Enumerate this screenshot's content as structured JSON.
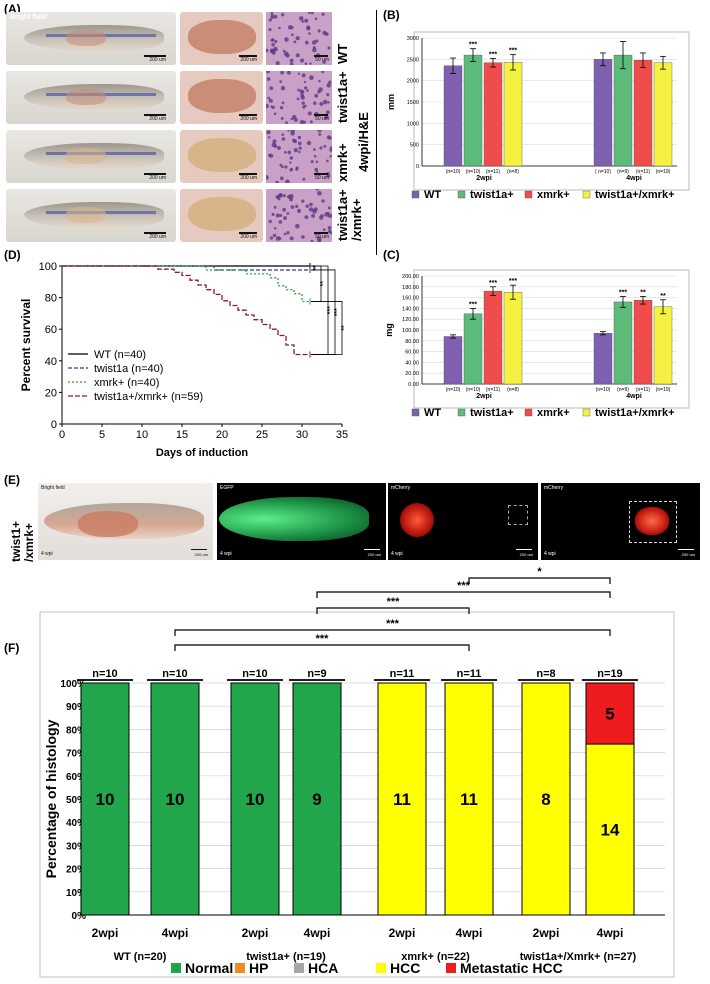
{
  "panel_labels": {
    "a": "(A)",
    "b": "(B)",
    "c": "(C)",
    "d": "(D)",
    "e": "(E)",
    "f": "(F)"
  },
  "panelA": {
    "bright_field_label": "Bright field",
    "row_labels": [
      "WT",
      "twist1a+",
      "xmrk+",
      "twist1a+\n/xmrk+"
    ],
    "row_label_line1": [
      "WT",
      "twist1a+",
      "xmrk+",
      "twist1a+"
    ],
    "row_label_line2": [
      "",
      "",
      "",
      "/xmrk+"
    ],
    "scale_fish": "200 um",
    "scale_liver": "200 um",
    "scale_he": "50 um",
    "he_title": "4wpi/H&E",
    "colors": {
      "fish": "#b9b2a8",
      "liver_wt": "#c98d78",
      "liver_xmrk": "#d8b48a",
      "he_bg": "#c9a0c6",
      "he_nuc": "#5b3a86"
    }
  },
  "chart_data": [
    {
      "id": "B",
      "type": "bar",
      "ylabel": "mm",
      "groups": [
        "2wpi",
        "4wpi"
      ],
      "series": [
        {
          "name": "WT",
          "color": "#7f5fb0",
          "values": [
            2350,
            2500
          ],
          "errors": [
            180,
            150
          ],
          "n": [
            "(n=10)",
            "( n=10)"
          ],
          "sig": [
            "",
            ""
          ]
        },
        {
          "name": "twist1a+",
          "color": "#5dbb7a",
          "values": [
            2600,
            2600
          ],
          "errors": [
            150,
            320
          ],
          "n": [
            "(n=10)",
            "(n=9)"
          ],
          "sig": [
            "***",
            ""
          ]
        },
        {
          "name": "xmrk+",
          "color": "#f04c4c",
          "values": [
            2420,
            2480
          ],
          "errors": [
            100,
            170
          ],
          "n": [
            "(n=11)",
            "(n=11)"
          ],
          "sig": [
            "***",
            ""
          ]
        },
        {
          "name": "twist1a+/xmrk+",
          "color": "#f5f142",
          "values": [
            2430,
            2420
          ],
          "errors": [
            180,
            150
          ],
          "n": [
            "(n=8)",
            "(n=19)"
          ],
          "sig": [
            "***",
            ""
          ]
        }
      ],
      "ylim": [
        0,
        3000
      ],
      "yticks": [
        "0",
        "500",
        "1000",
        "1500",
        "2000",
        "2500",
        "3000"
      ],
      "ytick_values": [
        0,
        500,
        1000,
        1500,
        2000,
        2500,
        3000
      ],
      "legend_position": "bottom"
    },
    {
      "id": "C",
      "type": "bar",
      "ylabel": "mg",
      "groups": [
        "2wpi",
        "4wpi"
      ],
      "series": [
        {
          "name": "WT",
          "color": "#7f5fb0",
          "values": [
            88,
            94
          ],
          "errors": [
            3,
            3
          ],
          "n": [
            "(n=10)",
            "(n=10)"
          ],
          "sig": [
            "",
            ""
          ]
        },
        {
          "name": "twist1a+",
          "color": "#5dbb7a",
          "values": [
            130,
            152
          ],
          "errors": [
            10,
            10
          ],
          "n": [
            "(n=10)",
            "(n=9)"
          ],
          "sig": [
            "***",
            "***"
          ]
        },
        {
          "name": "xmrk+",
          "color": "#f04c4c",
          "values": [
            172,
            155
          ],
          "errors": [
            8,
            7
          ],
          "n": [
            "(n=11)",
            "(n=11)"
          ],
          "sig": [
            "***",
            "**"
          ]
        },
        {
          "name": "twist1a+/xmrk+",
          "color": "#f5f142",
          "values": [
            170,
            143
          ],
          "errors": [
            13,
            13
          ],
          "n": [
            "(n=8)",
            "(n=19)"
          ],
          "sig": [
            "***",
            "**"
          ]
        }
      ],
      "ylim": [
        0,
        200
      ],
      "yticks": [
        "0.00",
        "20.00",
        "40.00",
        "60.00",
        "80.00",
        "100.00",
        "120.00",
        "140.00",
        "160.00",
        "180.00",
        "200.00"
      ],
      "ytick_values": [
        0,
        20,
        40,
        60,
        80,
        100,
        120,
        140,
        160,
        180,
        200
      ],
      "legend_position": "bottom"
    },
    {
      "id": "D",
      "type": "line",
      "xlabel": "Days of induction",
      "ylabel": "Percent survival",
      "xlim": [
        0,
        35
      ],
      "ylim": [
        0,
        100
      ],
      "xticks": [
        "0",
        "5",
        "10",
        "15",
        "20",
        "25",
        "30",
        "35"
      ],
      "xtick_values": [
        0,
        5,
        10,
        15,
        20,
        25,
        30,
        35
      ],
      "yticks": [
        "0",
        "20",
        "40",
        "60",
        "80",
        "100"
      ],
      "ytick_values": [
        0,
        20,
        40,
        60,
        80,
        100
      ],
      "series": [
        {
          "name": "WT (n=40)",
          "color": "#000000",
          "dash": "",
          "points": [
            [
              0,
              100
            ],
            [
              31,
              100
            ]
          ]
        },
        {
          "name": "twist1a (n=40)",
          "color": "#2a3b8f",
          "dash": "4,2",
          "points": [
            [
              0,
              100
            ],
            [
              12,
              100
            ],
            [
              19,
              100
            ],
            [
              19,
              97.5
            ],
            [
              28,
              97.5
            ],
            [
              31,
              97.5
            ]
          ]
        },
        {
          "name": "xmrk+ (n=40)",
          "color": "#2e9e3e",
          "dash": "2,2",
          "points": [
            [
              0,
              100
            ],
            [
              18,
              100
            ],
            [
              18,
              97.5
            ],
            [
              23,
              97.5
            ],
            [
              23,
              95
            ],
            [
              26,
              95
            ],
            [
              26,
              92.5
            ],
            [
              27,
              92.5
            ],
            [
              27,
              87.5
            ],
            [
              28,
              87.5
            ],
            [
              28,
              85
            ],
            [
              29,
              85
            ],
            [
              29,
              82.5
            ],
            [
              30,
              82.5
            ],
            [
              30,
              77.5
            ],
            [
              31,
              77.5
            ]
          ]
        },
        {
          "name": "twist1a+/xmrk+ (n=59)",
          "color": "#8a1c2a",
          "dash": "5,2",
          "points": [
            [
              0,
              100
            ],
            [
              12,
              100
            ],
            [
              12,
              98
            ],
            [
              14,
              98
            ],
            [
              14,
              96
            ],
            [
              15,
              96
            ],
            [
              15,
              94
            ],
            [
              16,
              94
            ],
            [
              16,
              91
            ],
            [
              17,
              91
            ],
            [
              17,
              88
            ],
            [
              18,
              88
            ],
            [
              18,
              85
            ],
            [
              19,
              85
            ],
            [
              19,
              82
            ],
            [
              20,
              82
            ],
            [
              20,
              78
            ],
            [
              21,
              78
            ],
            [
              21,
              75
            ],
            [
              22,
              75
            ],
            [
              22,
              72
            ],
            [
              23,
              72
            ],
            [
              23,
              69
            ],
            [
              24,
              69
            ],
            [
              24,
              66
            ],
            [
              25,
              66
            ],
            [
              25,
              63
            ],
            [
              26,
              63
            ],
            [
              26,
              60
            ],
            [
              27,
              60
            ],
            [
              27,
              56
            ],
            [
              28,
              56
            ],
            [
              28,
              50
            ],
            [
              29,
              50
            ],
            [
              29,
              44
            ],
            [
              31,
              44
            ]
          ]
        }
      ],
      "significance": [
        "**",
        "**",
        "***",
        "***",
        "**"
      ],
      "legend_position": "bottom-left"
    },
    {
      "id": "F",
      "type": "bar",
      "ylabel": "Percentage of histology",
      "stacked": true,
      "yticks": [
        "0%",
        "10%",
        "20%",
        "30%",
        "40%",
        "50%",
        "60%",
        "70%",
        "80%",
        "90%",
        "100%"
      ],
      "ytick_values": [
        0,
        10,
        20,
        30,
        40,
        50,
        60,
        70,
        80,
        90,
        100
      ],
      "ylim": [
        0,
        100
      ],
      "categories": [
        "2wpi",
        "4wpi",
        "2wpi",
        "4wpi",
        "2wpi",
        "4wpi",
        "2wpi",
        "4wpi"
      ],
      "group_labels": [
        "WT (n=20)",
        "twist1a+ (n=19)",
        "xmrk+ (n=22)",
        "twist1a+/Xmrk+ (n=27)"
      ],
      "n_labels": [
        "n=10",
        "n=10",
        "n=10",
        "n=9",
        "n=11",
        "n=11",
        "n=8",
        "n=19"
      ],
      "series": [
        {
          "name": "Normal",
          "color": "#22a64b",
          "counts": [
            10,
            10,
            10,
            9,
            0,
            0,
            0,
            0
          ]
        },
        {
          "name": "HP",
          "color": "#f08a24",
          "counts": [
            0,
            0,
            0,
            0,
            0,
            0,
            0,
            0
          ]
        },
        {
          "name": "HCA",
          "color": "#a6a6a6",
          "counts": [
            0,
            0,
            0,
            0,
            0,
            0,
            0,
            0
          ]
        },
        {
          "name": "HCC",
          "color": "#ffff00",
          "counts": [
            0,
            0,
            0,
            0,
            11,
            11,
            8,
            14
          ]
        },
        {
          "name": "Metastatic HCC",
          "color": "#ee1c1c",
          "counts": [
            0,
            0,
            0,
            0,
            0,
            0,
            0,
            5
          ]
        }
      ],
      "significance": [
        "*",
        "***",
        "***",
        "***",
        "***"
      ],
      "legend_position": "bottom"
    }
  ],
  "panelE": {
    "row_label_line1": "twist1+",
    "row_label_line2": "/xmrk+",
    "image_labels": [
      "Bright field",
      "EGFP",
      "mCherry",
      "mCherry"
    ],
    "wpi_labels": [
      "4 wpi",
      "4 wpi",
      "4 wpi",
      "4 wpi"
    ],
    "scales": [
      "200 um",
      "200 um",
      "200 um",
      "200 um"
    ]
  }
}
